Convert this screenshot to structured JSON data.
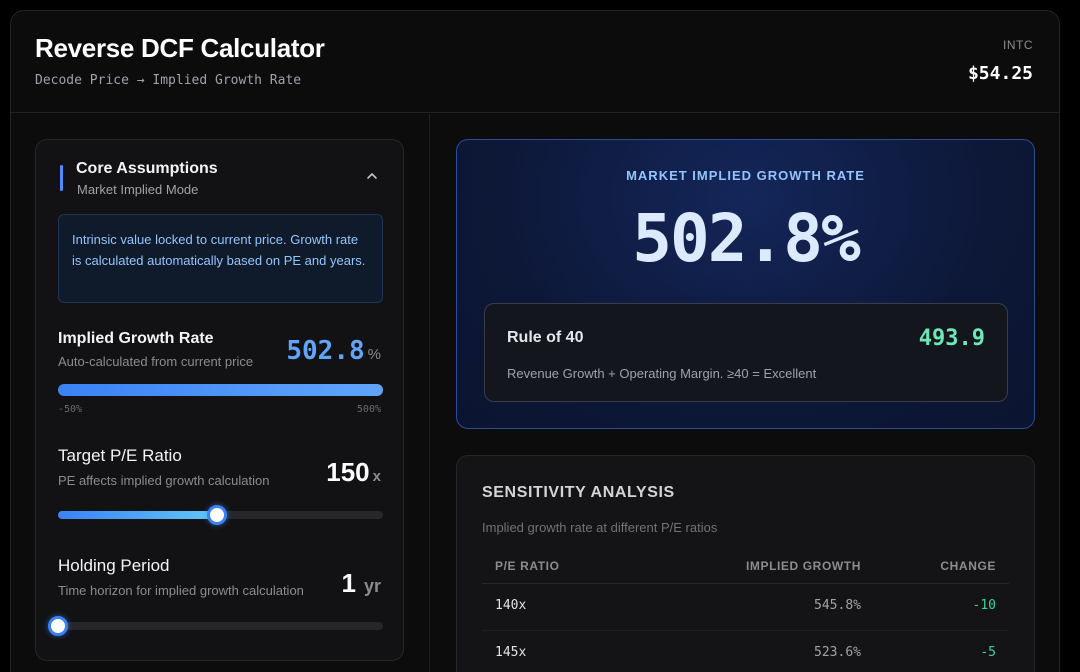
{
  "header": {
    "title": "Reverse DCF Calculator",
    "subtitle": "Decode Price → Implied Growth Rate",
    "ticker": "INTC",
    "price": "$54.25"
  },
  "assumptions": {
    "title": "Core Assumptions",
    "mode": "Market Implied Mode",
    "info": "Intrinsic value locked to current price. Growth rate is calculated automatically based on PE and years.",
    "implied_growth": {
      "title": "Implied Growth Rate",
      "desc": "Auto-calculated from current price",
      "value": "502.8",
      "unit": "%",
      "min_label": "-50%",
      "max_label": "500%",
      "fill_fraction": 1.0
    },
    "target_pe": {
      "title": "Target P/E Ratio",
      "desc": "PE affects implied growth calculation",
      "value": "150",
      "unit": "x",
      "fill_fraction": 0.49
    },
    "holding_period": {
      "title": "Holding Period",
      "desc": "Time horizon for implied growth calculation",
      "value": "1",
      "unit": "yr",
      "fill_fraction": 0.0
    }
  },
  "hero": {
    "label": "MARKET IMPLIED GROWTH RATE",
    "value": "502.8%",
    "rule_title": "Rule of 40",
    "rule_value": "493.9",
    "rule_desc": "Revenue Growth + Operating Margin. ≥40 = Excellent"
  },
  "sensitivity": {
    "title": "SENSITIVITY ANALYSIS",
    "subtitle": "Implied growth rate at different P/E ratios",
    "columns": [
      "P/E RATIO",
      "IMPLIED GROWTH",
      "CHANGE"
    ],
    "rows": [
      {
        "pe": "140x",
        "growth": "545.8%",
        "change": "-10"
      },
      {
        "pe": "145x",
        "growth": "523.6%",
        "change": "-5"
      }
    ]
  },
  "colors": {
    "accent": "#3b82f6",
    "positive": "#34d399",
    "hero_border": "#2c4b9a"
  }
}
